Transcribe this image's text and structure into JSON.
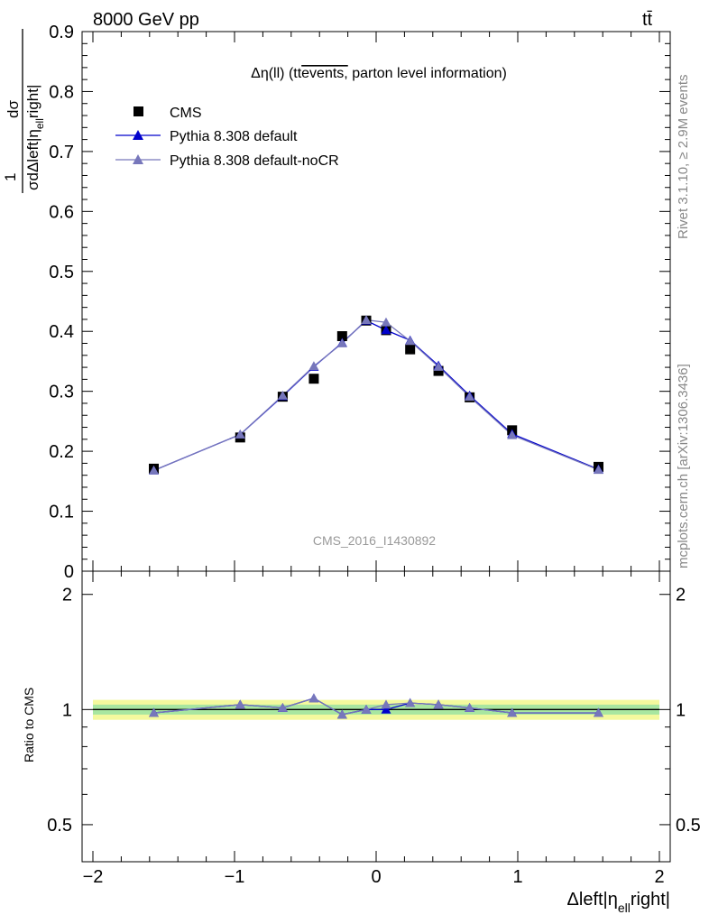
{
  "header": {
    "energy": "8000 GeV pp",
    "process": "tt̄",
    "rivet": "Rivet 3.1.10, ≥ 2.9M events",
    "mcplots": "mcplots.cern.ch [arXiv:1306.3436]",
    "analysis_id": "CMS_2016_I1430892"
  },
  "plot_title": {
    "prefix": "Δη(ll) (tt",
    "over": "events,",
    "suffix": " parton level information)"
  },
  "axes": {
    "ylabel_main_num": "dσ",
    "ylabel_main_den": "σdΔleft|η",
    "ylabel_main_sub": "ell",
    "ylabel_main_tail": "right|",
    "ylabel_main_one": "1",
    "ylabel_ratio": "Ratio to CMS",
    "xlabel": "Δleft|η",
    "xlabel_sub": "ell",
    "xlabel_tail": "right|"
  },
  "legend": [
    {
      "label": "CMS",
      "marker": "square",
      "color": "#000000"
    },
    {
      "label": "Pythia 8.308 default",
      "marker": "triangle",
      "color": "#0000cc"
    },
    {
      "label": "Pythia 8.308 default-noCR",
      "marker": "triangle",
      "color": "#7777bb"
    }
  ],
  "chart_data": {
    "type": "line",
    "xlim": [
      -2,
      2
    ],
    "ylim": [
      0,
      0.9
    ],
    "ratio_ylim": [
      0.4,
      2.3
    ],
    "x_ticks": [
      "−2",
      "−1",
      "0",
      "1",
      "2"
    ],
    "y_ticks": [
      "0",
      "0.1",
      "0.2",
      "0.3",
      "0.4",
      "0.5",
      "0.6",
      "0.7",
      "0.8",
      "0.9"
    ],
    "ratio_ticks": [
      "0.5",
      "1",
      "2"
    ],
    "x": [
      -1.57,
      -0.96,
      -0.66,
      -0.44,
      -0.24,
      -0.07,
      0.07,
      0.24,
      0.44,
      0.66,
      0.96,
      1.57
    ],
    "series": [
      {
        "name": "CMS",
        "values": [
          0.171,
          0.223,
          0.291,
          0.321,
          0.392,
          0.418,
          0.402,
          0.37,
          0.334,
          0.29,
          0.235,
          0.174
        ]
      },
      {
        "name": "Pythia 8.308 default",
        "values": [
          0.168,
          0.228,
          0.292,
          0.341,
          0.381,
          0.418,
          0.402,
          0.385,
          0.343,
          0.293,
          0.229,
          0.17
        ]
      },
      {
        "name": "Pythia 8.308 default-noCR",
        "values": [
          0.168,
          0.228,
          0.293,
          0.342,
          0.38,
          0.419,
          0.415,
          0.384,
          0.341,
          0.291,
          0.227,
          0.169
        ]
      }
    ],
    "ratio_series": [
      {
        "name": "Pythia 8.308 default",
        "values": [
          0.98,
          1.03,
          1.01,
          1.07,
          0.97,
          1.0,
          1.0,
          1.04,
          1.03,
          1.01,
          0.98,
          0.98
        ]
      },
      {
        "name": "Pythia 8.308 default-noCR",
        "values": [
          0.98,
          1.03,
          1.01,
          1.07,
          0.97,
          1.0,
          1.03,
          1.04,
          1.03,
          1.01,
          0.98,
          0.98
        ]
      }
    ]
  }
}
